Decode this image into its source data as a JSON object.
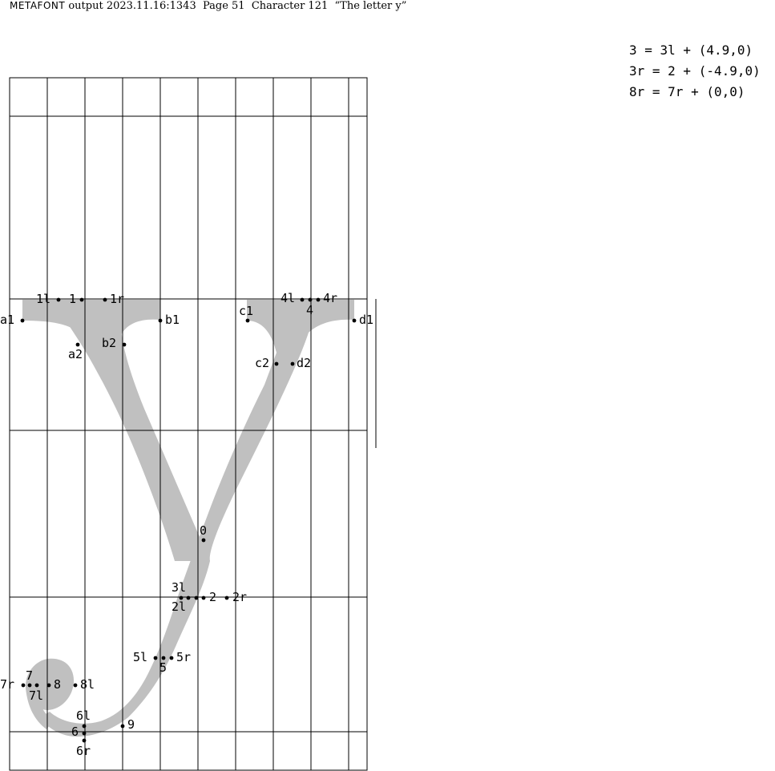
{
  "header": {
    "program": "METAFONT",
    "text": "output 2023.11.16:1343  Page 51  Character 121  “The letter y”"
  },
  "equations": [
    "3 = 3l + (4.9,0)",
    "3r = 2 + (-4.9,0)",
    "8r = 7r + (0,0)"
  ],
  "labels": {
    "p1l": "1l",
    "p1": "1",
    "p1r": "1r",
    "a1": "a1",
    "b1": "b1",
    "a2": "a2",
    "b2": "b2",
    "c1": "c1",
    "d1": "d1",
    "c2": "c2",
    "d2": "d2",
    "p4l": "4l",
    "p4": "4",
    "p4r": "4r",
    "p0": "0",
    "p3l": "3l",
    "p2l": "2l",
    "p2": "2",
    "p2r": "2r",
    "p5l": "5l",
    "p5": "5",
    "p5r": "5r",
    "p7": "7",
    "p7r": "7r",
    "p7l": "7l",
    "p8": "8",
    "p8l": "8l",
    "p6l": "6l",
    "p6": "6",
    "p6r": "6r",
    "p9": "9"
  },
  "colors": {
    "glyph": "#c0c0c0",
    "grid": "#000000",
    "ink": "#000000"
  }
}
